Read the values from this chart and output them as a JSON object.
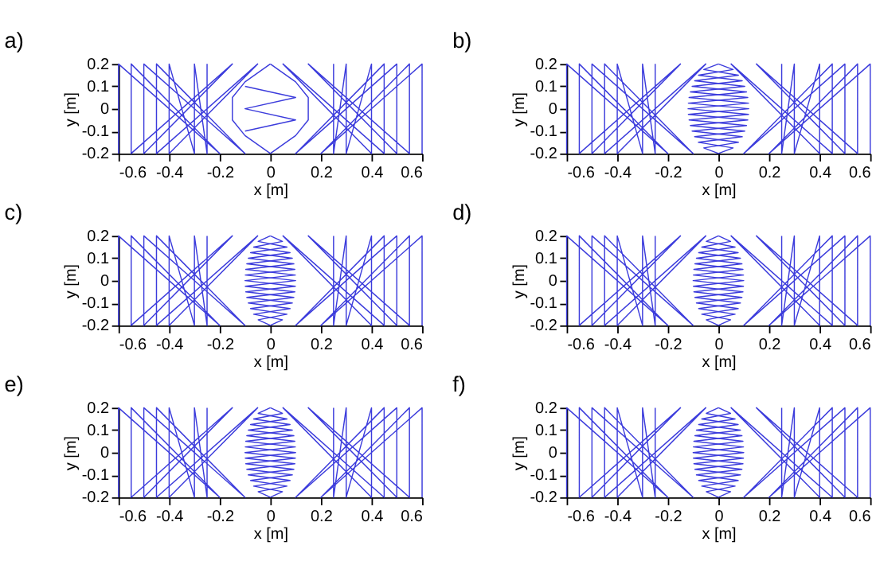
{
  "chart_data": [
    {
      "type": "line",
      "title": "a)",
      "xlabel": "x [m]",
      "ylabel": "y [m]",
      "xlim": [
        -0.6,
        0.6
      ],
      "ylim": [
        -0.2,
        0.2
      ],
      "xticks": [
        -0.6,
        -0.4,
        -0.2,
        0,
        0.2,
        0.4,
        0.6
      ],
      "yticks": [
        -0.2,
        -0.1,
        0,
        0.1,
        0.2
      ],
      "series": [
        {
          "color": "#3c3cdc",
          "x": [
            -0.6,
            -0.6,
            -0.2,
            -0.55,
            -0.55,
            -0.15,
            -0.5,
            -0.5,
            -0.1,
            -0.45,
            -0.45,
            -0.05,
            -0.4,
            -0.4,
            -0.3,
            -0.3,
            -0.25,
            -0.25
          ],
          "values": [
            -0.2,
            0.2,
            -0.2,
            0.2,
            -0.2,
            0.2,
            -0.2,
            0.2,
            -0.2,
            0.2,
            -0.2,
            0.2,
            -0.2,
            0.2,
            -0.2,
            0.2,
            -0.2,
            0.2
          ]
        },
        {
          "color": "#3c3cdc",
          "x": [
            0.6,
            0.6,
            0.2,
            0.55,
            0.55,
            0.15,
            0.5,
            0.5,
            0.1,
            0.45,
            0.45,
            0.05,
            0.4,
            0.4,
            0.3,
            0.3,
            0.25,
            0.25
          ],
          "values": [
            -0.2,
            0.2,
            -0.2,
            0.2,
            -0.2,
            0.2,
            -0.2,
            0.2,
            -0.2,
            0.2,
            -0.2,
            0.2,
            -0.2,
            0.2,
            -0.2,
            0.2,
            -0.2,
            0.2
          ]
        },
        {
          "color": "#3c3cdc",
          "x": [
            0,
            0.1,
            0.15,
            0.15,
            0.1,
            0
          ],
          "values": [
            0.2,
            0.12,
            0.05,
            -0.05,
            -0.12,
            -0.2
          ]
        },
        {
          "color": "#3c3cdc",
          "x": [
            0,
            -0.1,
            -0.15,
            -0.15,
            -0.1,
            0
          ],
          "values": [
            -0.2,
            -0.12,
            -0.05,
            0.05,
            0.12,
            0.2
          ]
        },
        {
          "color": "#3c3cdc",
          "x": [
            -0.1,
            0.1,
            -0.1,
            0.1,
            -0.1
          ],
          "values": [
            0.1,
            0.05,
            0,
            -0.05,
            -0.1
          ]
        }
      ]
    },
    {
      "type": "line",
      "title": "b)",
      "xlabel": "x [m]",
      "ylabel": "y [m]",
      "xlim": [
        -0.6,
        0.6
      ],
      "ylim": [
        -0.2,
        0.2
      ],
      "xticks": [
        -0.6,
        -0.4,
        -0.2,
        0,
        0.2,
        0.4,
        0.6
      ],
      "yticks": [
        -0.2,
        -0.1,
        0,
        0.1,
        0.2
      ],
      "series": [
        {
          "color": "#3c3cdc",
          "x": [
            -0.6,
            -0.6,
            -0.2,
            -0.55,
            -0.55,
            -0.15,
            -0.5,
            -0.5,
            -0.1,
            -0.45,
            -0.45,
            -0.05,
            -0.4,
            -0.4,
            -0.3,
            -0.3,
            -0.25,
            -0.25
          ],
          "values": [
            -0.2,
            0.2,
            -0.2,
            0.2,
            -0.2,
            0.2,
            -0.2,
            0.2,
            -0.2,
            0.2,
            -0.2,
            0.2,
            -0.2,
            0.2,
            -0.2,
            0.2,
            -0.2,
            0.2
          ]
        },
        {
          "color": "#3c3cdc",
          "x": [
            0.6,
            0.6,
            0.2,
            0.55,
            0.55,
            0.15,
            0.5,
            0.5,
            0.1,
            0.45,
            0.45,
            0.05,
            0.4,
            0.4,
            0.3,
            0.3,
            0.25,
            0.25
          ],
          "values": [
            -0.2,
            0.2,
            -0.2,
            0.2,
            -0.2,
            0.2,
            -0.2,
            0.2,
            -0.2,
            0.2,
            -0.2,
            0.2,
            -0.2,
            0.2,
            -0.2,
            0.2,
            -0.2,
            0.2
          ]
        },
        {
          "color": "#3c3cdc",
          "x": [
            0,
            0.058,
            -0.079,
            0.094,
            -0.104,
            0.111,
            -0.116,
            0.119,
            -0.12,
            0.119,
            -0.116,
            0.111,
            -0.104,
            0.094,
            -0.079,
            0.058,
            0
          ],
          "values": [
            0.2,
            0.175,
            0.15,
            0.125,
            0.1,
            0.075,
            0.05,
            0.025,
            0,
            -0.025,
            -0.05,
            -0.075,
            -0.1,
            -0.125,
            -0.15,
            -0.175,
            -0.2
          ]
        },
        {
          "color": "#3c3cdc",
          "x": [
            0,
            -0.058,
            0.079,
            -0.094,
            0.104,
            -0.111,
            0.116,
            -0.119,
            0.12,
            -0.119,
            0.116,
            -0.111,
            0.104,
            -0.094,
            0.079,
            -0.058,
            0
          ],
          "values": [
            -0.2,
            -0.175,
            -0.15,
            -0.125,
            -0.1,
            -0.075,
            -0.05,
            -0.025,
            0,
            0.025,
            0.05,
            0.075,
            0.1,
            0.125,
            0.15,
            0.175,
            0.2
          ]
        }
      ]
    },
    {
      "type": "line",
      "title": "c)",
      "xlabel": "x [m]",
      "ylabel": "y [m]",
      "xlim": [
        -0.6,
        0.6
      ],
      "ylim": [
        -0.2,
        0.2
      ],
      "xticks": [
        -0.6,
        -0.4,
        -0.2,
        0,
        0.2,
        0.4,
        0.6
      ],
      "yticks": [
        -0.2,
        -0.1,
        0,
        0.1,
        0.2
      ],
      "series": [
        {
          "color": "#3c3cdc",
          "x": [
            -0.6,
            -0.6,
            -0.2,
            -0.55,
            -0.55,
            -0.15,
            -0.5,
            -0.5,
            -0.1,
            -0.45,
            -0.45,
            -0.05,
            -0.4,
            -0.4,
            -0.3,
            -0.3,
            -0.25,
            -0.25
          ],
          "values": [
            -0.2,
            0.2,
            -0.2,
            0.2,
            -0.2,
            0.2,
            -0.2,
            0.2,
            -0.2,
            0.2,
            -0.2,
            0.2,
            -0.2,
            0.2,
            -0.2,
            0.2,
            -0.2,
            0.2
          ]
        },
        {
          "color": "#3c3cdc",
          "x": [
            0.6,
            0.6,
            0.2,
            0.55,
            0.55,
            0.15,
            0.5,
            0.5,
            0.1,
            0.45,
            0.45,
            0.05,
            0.4,
            0.4,
            0.3,
            0.3,
            0.25,
            0.25
          ],
          "values": [
            -0.2,
            0.2,
            -0.2,
            0.2,
            -0.2,
            0.2,
            -0.2,
            0.2,
            -0.2,
            0.2,
            -0.2,
            0.2,
            -0.2,
            0.2,
            -0.2,
            0.2,
            -0.2,
            0.2
          ]
        },
        {
          "color": "#3c3cdc",
          "x": [
            0,
            0.048,
            -0.066,
            0.078,
            -0.087,
            0.093,
            -0.097,
            0.099,
            -0.1,
            0.099,
            -0.097,
            0.093,
            -0.087,
            0.078,
            -0.066,
            0.048,
            0
          ],
          "values": [
            0.2,
            0.175,
            0.15,
            0.125,
            0.1,
            0.075,
            0.05,
            0.025,
            0,
            -0.025,
            -0.05,
            -0.075,
            -0.1,
            -0.125,
            -0.15,
            -0.175,
            -0.2
          ]
        },
        {
          "color": "#3c3cdc",
          "x": [
            0,
            -0.048,
            0.066,
            -0.078,
            0.087,
            -0.093,
            0.097,
            -0.099,
            0.1,
            -0.099,
            0.097,
            -0.093,
            0.087,
            -0.078,
            0.066,
            -0.048,
            0
          ],
          "values": [
            -0.2,
            -0.175,
            -0.15,
            -0.125,
            -0.1,
            -0.075,
            -0.05,
            -0.025,
            0,
            0.025,
            0.05,
            0.075,
            0.1,
            0.125,
            0.15,
            0.175,
            0.2
          ]
        }
      ]
    },
    {
      "type": "line",
      "title": "d)",
      "xlabel": "x [m]",
      "ylabel": "y [m]",
      "xlim": [
        -0.6,
        0.6
      ],
      "ylim": [
        -0.2,
        0.2
      ],
      "xticks": [
        -0.6,
        -0.4,
        -0.2,
        0,
        0.2,
        0.4,
        0.6
      ],
      "yticks": [
        -0.2,
        -0.1,
        0,
        0.1,
        0.2
      ],
      "series": [
        {
          "color": "#3c3cdc",
          "x": [
            -0.6,
            -0.6,
            -0.2,
            -0.55,
            -0.55,
            -0.15,
            -0.5,
            -0.5,
            -0.1,
            -0.45,
            -0.45,
            -0.05,
            -0.4,
            -0.4,
            -0.3,
            -0.3,
            -0.25,
            -0.25
          ],
          "values": [
            -0.2,
            0.2,
            -0.2,
            0.2,
            -0.2,
            0.2,
            -0.2,
            0.2,
            -0.2,
            0.2,
            -0.2,
            0.2,
            -0.2,
            0.2,
            -0.2,
            0.2,
            -0.2,
            0.2
          ]
        },
        {
          "color": "#3c3cdc",
          "x": [
            0.6,
            0.6,
            0.2,
            0.55,
            0.55,
            0.15,
            0.5,
            0.5,
            0.1,
            0.45,
            0.45,
            0.05,
            0.4,
            0.4,
            0.3,
            0.3,
            0.25,
            0.25
          ],
          "values": [
            -0.2,
            0.2,
            -0.2,
            0.2,
            -0.2,
            0.2,
            -0.2,
            0.2,
            -0.2,
            0.2,
            -0.2,
            0.2,
            -0.2,
            0.2,
            -0.2,
            0.2,
            -0.2,
            0.2
          ]
        },
        {
          "color": "#3c3cdc",
          "x": [
            0,
            0.048,
            -0.066,
            0.078,
            -0.087,
            0.093,
            -0.097,
            0.099,
            -0.1,
            0.099,
            -0.097,
            0.093,
            -0.087,
            0.078,
            -0.066,
            0.048,
            0
          ],
          "values": [
            0.2,
            0.175,
            0.15,
            0.125,
            0.1,
            0.075,
            0.05,
            0.025,
            0,
            -0.025,
            -0.05,
            -0.075,
            -0.1,
            -0.125,
            -0.15,
            -0.175,
            -0.2
          ]
        },
        {
          "color": "#3c3cdc",
          "x": [
            0,
            -0.048,
            0.066,
            -0.078,
            0.087,
            -0.093,
            0.097,
            -0.099,
            0.1,
            -0.099,
            0.097,
            -0.093,
            0.087,
            -0.078,
            0.066,
            -0.048,
            0
          ],
          "values": [
            -0.2,
            -0.175,
            -0.15,
            -0.125,
            -0.1,
            -0.075,
            -0.05,
            -0.025,
            0,
            0.025,
            0.05,
            0.075,
            0.1,
            0.125,
            0.15,
            0.175,
            0.2
          ]
        }
      ]
    },
    {
      "type": "line",
      "title": "e)",
      "xlabel": "x [m]",
      "ylabel": "y [m]",
      "xlim": [
        -0.6,
        0.6
      ],
      "ylim": [
        -0.2,
        0.2
      ],
      "xticks": [
        -0.6,
        -0.4,
        -0.2,
        0,
        0.2,
        0.4,
        0.6
      ],
      "yticks": [
        -0.2,
        -0.1,
        0,
        0.1,
        0.2
      ],
      "series": [
        {
          "color": "#3c3cdc",
          "x": [
            -0.6,
            -0.6,
            -0.2,
            -0.55,
            -0.55,
            -0.15,
            -0.5,
            -0.5,
            -0.1,
            -0.45,
            -0.45,
            -0.05,
            -0.4,
            -0.4,
            -0.3,
            -0.3,
            -0.25,
            -0.25
          ],
          "values": [
            -0.2,
            0.2,
            -0.2,
            0.2,
            -0.2,
            0.2,
            -0.2,
            0.2,
            -0.2,
            0.2,
            -0.2,
            0.2,
            -0.2,
            0.2,
            -0.2,
            0.2,
            -0.2,
            0.2
          ]
        },
        {
          "color": "#3c3cdc",
          "x": [
            0.6,
            0.6,
            0.2,
            0.55,
            0.55,
            0.15,
            0.5,
            0.5,
            0.1,
            0.45,
            0.45,
            0.05,
            0.4,
            0.4,
            0.3,
            0.3,
            0.25,
            0.25
          ],
          "values": [
            -0.2,
            0.2,
            -0.2,
            0.2,
            -0.2,
            0.2,
            -0.2,
            0.2,
            -0.2,
            0.2,
            -0.2,
            0.2,
            -0.2,
            0.2,
            -0.2,
            0.2,
            -0.2,
            0.2
          ]
        },
        {
          "color": "#3c3cdc",
          "x": [
            0,
            0.048,
            -0.066,
            0.078,
            -0.087,
            0.093,
            -0.097,
            0.099,
            -0.1,
            0.099,
            -0.097,
            0.093,
            -0.087,
            0.078,
            -0.066,
            0.048,
            0
          ],
          "values": [
            0.2,
            0.175,
            0.15,
            0.125,
            0.1,
            0.075,
            0.05,
            0.025,
            0,
            -0.025,
            -0.05,
            -0.075,
            -0.1,
            -0.125,
            -0.15,
            -0.175,
            -0.2
          ]
        },
        {
          "color": "#3c3cdc",
          "x": [
            0,
            -0.048,
            0.066,
            -0.078,
            0.087,
            -0.093,
            0.097,
            -0.099,
            0.1,
            -0.099,
            0.097,
            -0.093,
            0.087,
            -0.078,
            0.066,
            -0.048,
            0
          ],
          "values": [
            -0.2,
            -0.175,
            -0.15,
            -0.125,
            -0.1,
            -0.075,
            -0.05,
            -0.025,
            0,
            0.025,
            0.05,
            0.075,
            0.1,
            0.125,
            0.15,
            0.175,
            0.2
          ]
        }
      ]
    },
    {
      "type": "line",
      "title": "f)",
      "xlabel": "x [m]",
      "ylabel": "y [m]",
      "xlim": [
        -0.6,
        0.6
      ],
      "ylim": [
        -0.2,
        0.2
      ],
      "xticks": [
        -0.6,
        -0.4,
        -0.2,
        0,
        0.2,
        0.4,
        0.6
      ],
      "yticks": [
        -0.2,
        -0.1,
        0,
        0.1,
        0.2
      ],
      "series": [
        {
          "color": "#3c3cdc",
          "x": [
            -0.6,
            -0.6,
            -0.2,
            -0.55,
            -0.55,
            -0.15,
            -0.5,
            -0.5,
            -0.1,
            -0.45,
            -0.45,
            -0.05,
            -0.4,
            -0.4,
            -0.3,
            -0.3,
            -0.25,
            -0.25
          ],
          "values": [
            -0.2,
            0.2,
            -0.2,
            0.2,
            -0.2,
            0.2,
            -0.2,
            0.2,
            -0.2,
            0.2,
            -0.2,
            0.2,
            -0.2,
            0.2,
            -0.2,
            0.2,
            -0.2,
            0.2
          ]
        },
        {
          "color": "#3c3cdc",
          "x": [
            0.6,
            0.6,
            0.2,
            0.55,
            0.55,
            0.15,
            0.5,
            0.5,
            0.1,
            0.45,
            0.45,
            0.05,
            0.4,
            0.4,
            0.3,
            0.3,
            0.25,
            0.25
          ],
          "values": [
            -0.2,
            0.2,
            -0.2,
            0.2,
            -0.2,
            0.2,
            -0.2,
            0.2,
            -0.2,
            0.2,
            -0.2,
            0.2,
            -0.2,
            0.2,
            -0.2,
            0.2,
            -0.2,
            0.2
          ]
        },
        {
          "color": "#3c3cdc",
          "x": [
            0,
            0.048,
            -0.066,
            0.078,
            -0.087,
            0.093,
            -0.097,
            0.099,
            -0.1,
            0.099,
            -0.097,
            0.093,
            -0.087,
            0.078,
            -0.066,
            0.048,
            0
          ],
          "values": [
            0.2,
            0.175,
            0.15,
            0.125,
            0.1,
            0.075,
            0.05,
            0.025,
            0,
            -0.025,
            -0.05,
            -0.075,
            -0.1,
            -0.125,
            -0.15,
            -0.175,
            -0.2
          ]
        },
        {
          "color": "#3c3cdc",
          "x": [
            0,
            -0.048,
            0.066,
            -0.078,
            0.087,
            -0.093,
            0.097,
            -0.099,
            0.1,
            -0.099,
            0.097,
            -0.093,
            0.087,
            -0.078,
            0.066,
            -0.048,
            0
          ],
          "values": [
            -0.2,
            -0.175,
            -0.15,
            -0.125,
            -0.1,
            -0.075,
            -0.05,
            -0.025,
            0,
            0.025,
            0.05,
            0.075,
            0.1,
            0.125,
            0.15,
            0.175,
            0.2
          ]
        }
      ]
    }
  ]
}
